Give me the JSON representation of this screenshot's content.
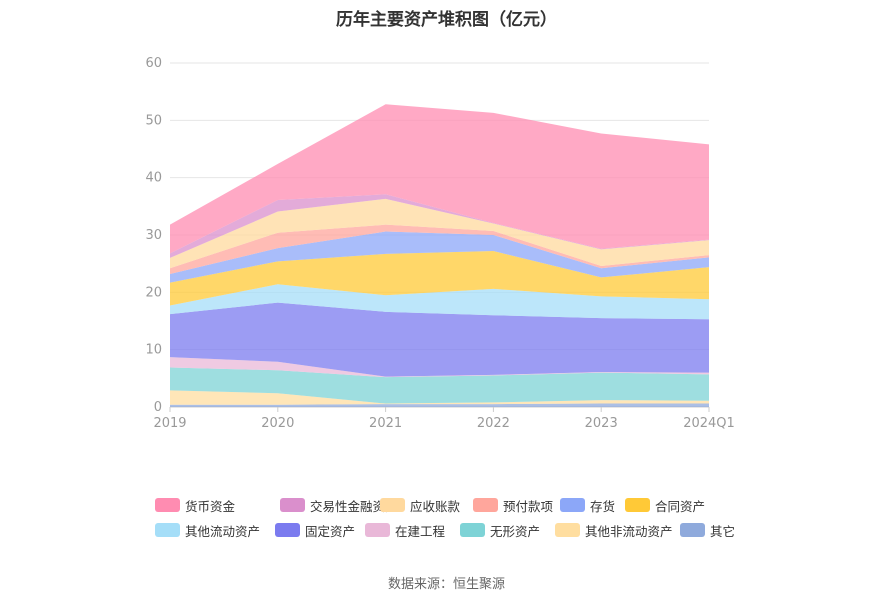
{
  "chart_data": {
    "type": "area",
    "stacked": true,
    "title": "历年主要资产堆积图（亿元）",
    "categories": [
      "2019",
      "2020",
      "2021",
      "2022",
      "2023",
      "2024Q1"
    ],
    "yticks": [
      "0",
      "10",
      "20",
      "30",
      "40",
      "50",
      "60"
    ],
    "ylim": [
      0,
      60
    ],
    "grid": true,
    "legend_position": "bottom",
    "series": [
      {
        "name": "其它",
        "color": "#8FAADC",
        "values": [
          0.4,
          0.4,
          0.5,
          0.5,
          0.6,
          0.6
        ]
      },
      {
        "name": "其他非流动资产",
        "color": "#FFDEA0",
        "values": [
          2.5,
          2.0,
          0.1,
          0.3,
          0.6,
          0.5
        ]
      },
      {
        "name": "无形资产",
        "color": "#7ED3D6",
        "values": [
          4.0,
          4.0,
          4.6,
          4.7,
          4.8,
          4.6
        ]
      },
      {
        "name": "在建工程",
        "color": "#E9B8D8",
        "values": [
          1.8,
          1.5,
          0.1,
          0.1,
          0.1,
          0.3
        ]
      },
      {
        "name": "固定资产",
        "color": "#7B7BEF",
        "values": [
          7.5,
          10.3,
          11.3,
          10.4,
          9.4,
          9.3
        ]
      },
      {
        "name": "其他流动资产",
        "color": "#A5DEF8",
        "values": [
          1.5,
          3.2,
          2.9,
          4.6,
          3.8,
          3.5
        ]
      },
      {
        "name": "合同资产",
        "color": "#FFC937",
        "values": [
          4.0,
          4.0,
          7.2,
          6.6,
          3.3,
          5.6
        ]
      },
      {
        "name": "存货",
        "color": "#8CA7F8",
        "values": [
          1.5,
          2.3,
          3.9,
          2.8,
          1.6,
          1.7
        ]
      },
      {
        "name": "预付款项",
        "color": "#FFA69C",
        "values": [
          1.0,
          2.7,
          1.2,
          0.7,
          0.4,
          0.4
        ]
      },
      {
        "name": "应收账款",
        "color": "#FFD99E",
        "values": [
          1.8,
          3.7,
          4.5,
          1.3,
          2.9,
          2.6
        ]
      },
      {
        "name": "交易性金融资产",
        "color": "#DA8FCC",
        "values": [
          0.8,
          2.0,
          0.8,
          0.1,
          0.1,
          0.1
        ]
      },
      {
        "name": "货币资金",
        "color": "#FF8CB1",
        "values": [
          5.0,
          6.3,
          15.7,
          19.2,
          20.1,
          16.6
        ]
      }
    ],
    "legend_order": [
      "货币资金",
      "交易性金融资产",
      "应收账款",
      "预付款项",
      "存货",
      "合同资产",
      "其他流动资产",
      "固定资产",
      "在建工程",
      "无形资产",
      "其他非流动资产",
      "其它"
    ]
  },
  "source": "数据来源：恒生聚源"
}
